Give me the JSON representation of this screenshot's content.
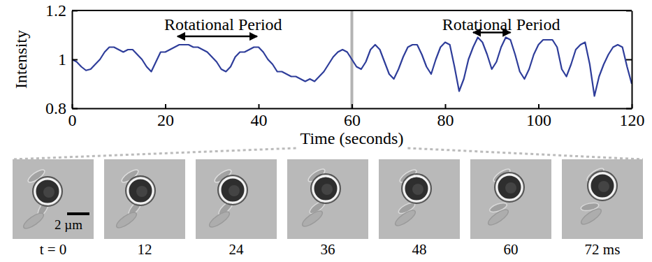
{
  "chart_data": {
    "type": "line",
    "x_label": "Time (seconds)",
    "y_label": "Intensity",
    "xlim": [
      0,
      120
    ],
    "ylim": [
      0.8,
      1.2
    ],
    "xticks": [
      0,
      20,
      40,
      60,
      80,
      100,
      120
    ],
    "yticks": [
      0.8,
      1,
      1.2
    ],
    "highlight_x": 60,
    "annotations": [
      {
        "text": "Rotational Period",
        "x": 32.4,
        "y": 1.143,
        "arrow": [
          22.6,
          39.7
        ],
        "arrow_y": 1.094
      },
      {
        "text": "Rotational Period",
        "x": 92,
        "y": 1.143,
        "arrow": [
          86,
          94
        ],
        "arrow_y": 1.11
      }
    ],
    "x": [
      0,
      1,
      2,
      3,
      4,
      5,
      6,
      7,
      8,
      9,
      10,
      11,
      12,
      13,
      14,
      15,
      16,
      17,
      18,
      19,
      20,
      21,
      22,
      23,
      24,
      25,
      26,
      27,
      28,
      29,
      30,
      31,
      32,
      33,
      34,
      35,
      36,
      37,
      38,
      39,
      40,
      41,
      42,
      43,
      44,
      45,
      46,
      47,
      48,
      49,
      50,
      51,
      52,
      53,
      54,
      55,
      56,
      57,
      58,
      59,
      60,
      61,
      62,
      63,
      64,
      65,
      66,
      67,
      68,
      69,
      70,
      71,
      72,
      73,
      74,
      75,
      76,
      77,
      78,
      79,
      80,
      81,
      82,
      83,
      84,
      85,
      86,
      87,
      88,
      89,
      90,
      91,
      92,
      93,
      94,
      95,
      96,
      97,
      98,
      99,
      100,
      101,
      102,
      103,
      104,
      105,
      106,
      107,
      108,
      109,
      110,
      111,
      112,
      113,
      114,
      115,
      116,
      117,
      118,
      119,
      120
    ],
    "series": [
      {
        "color": "#2e3d9a",
        "values": [
          1.0,
          0.99,
          0.97,
          0.955,
          0.96,
          0.98,
          1.0,
          1.03,
          1.05,
          1.05,
          1.04,
          1.03,
          1.04,
          1.04,
          1.02,
          1.0,
          0.97,
          0.95,
          0.99,
          1.03,
          1.03,
          1.04,
          1.05,
          1.06,
          1.06,
          1.06,
          1.05,
          1.05,
          1.04,
          1.03,
          1.01,
          0.99,
          0.96,
          0.95,
          0.97,
          1.01,
          1.03,
          1.03,
          1.04,
          1.05,
          1.05,
          1.03,
          1.0,
          0.98,
          0.95,
          0.95,
          0.94,
          0.93,
          0.93,
          0.92,
          0.91,
          0.92,
          0.91,
          0.93,
          0.95,
          0.98,
          1.01,
          1.03,
          1.04,
          1.03,
          1.0,
          0.97,
          0.96,
          0.99,
          1.04,
          1.06,
          1.04,
          0.99,
          0.94,
          0.92,
          0.96,
          1.01,
          1.05,
          1.06,
          1.06,
          1.02,
          0.97,
          0.94,
          1.0,
          1.05,
          1.07,
          1.06,
          0.97,
          0.87,
          0.92,
          1.0,
          1.05,
          1.09,
          1.07,
          1.02,
          0.96,
          0.99,
          1.05,
          1.09,
          1.08,
          1.02,
          0.95,
          0.92,
          0.96,
          1.02,
          1.06,
          1.08,
          1.08,
          1.08,
          1.05,
          0.96,
          0.93,
          0.98,
          1.04,
          1.06,
          1.07,
          0.98,
          0.85,
          0.93,
          0.98,
          1.02,
          1.05,
          1.06,
          1.05,
          0.97,
          0.9
        ]
      }
    ]
  },
  "image_strip": {
    "frame_labels": [
      "t = 0",
      "12",
      "24",
      "36",
      "48",
      "60",
      "72 ms"
    ],
    "scale_bar": "2 µm"
  }
}
